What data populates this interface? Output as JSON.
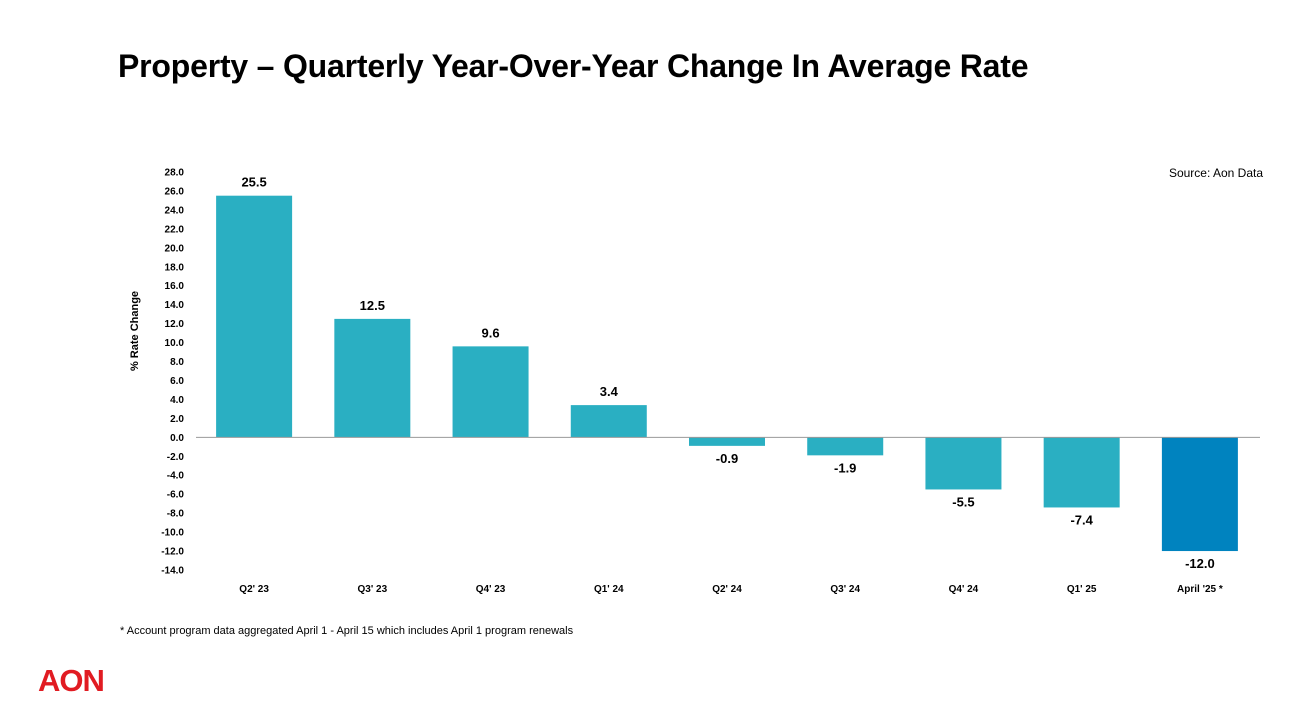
{
  "title": "Property – Quarterly Year-Over-Year Change In Average Rate",
  "source": "Source: Aon Data",
  "footnote": "* Account program data aggregated April 1 - April 15 which includes April 1 program renewals",
  "logo": {
    "text": "AON",
    "color": "#e11b22"
  },
  "chart_data": {
    "type": "bar",
    "title": "Property – Quarterly Year-Over-Year Change In Average Rate",
    "xlabel": "",
    "ylabel": "% Rate Change",
    "ylim": [
      -14,
      28
    ],
    "ytick_step": 2,
    "grid": false,
    "categories": [
      "Q2' 23",
      "Q3' 23",
      "Q4' 23",
      "Q1' 24",
      "Q2' 24",
      "Q3' 24",
      "Q4' 24",
      "Q1' 25",
      "April '25 *"
    ],
    "values": [
      25.5,
      12.5,
      9.6,
      3.4,
      -0.9,
      -1.9,
      -5.5,
      -7.4,
      -12.0
    ],
    "data_labels": [
      "25.5",
      "12.5",
      "9.6",
      "3.4",
      "-0.9",
      "-1.9",
      "-5.5",
      "-7.4",
      "-12.0"
    ],
    "colors": {
      "default": "#2aafc2",
      "highlight": "#0083bf"
    },
    "highlight_index": 8
  }
}
